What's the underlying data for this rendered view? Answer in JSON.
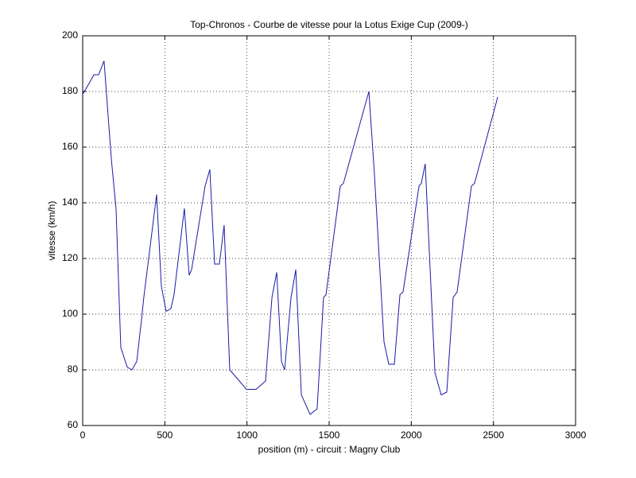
{
  "chart_data": {
    "type": "line",
    "title": "Top-Chronos - Courbe de vitesse pour la Lotus Exige Cup (2009-)",
    "x_label": "position (m) - circuit : Magny Club",
    "y_label": "vitesse (km/h)",
    "x": [
      0,
      40,
      68,
      97,
      130,
      174,
      203,
      232,
      271,
      300,
      329,
      358,
      372,
      450,
      479,
      508,
      537,
      556,
      619,
      648,
      663,
      745,
      774,
      803,
      832,
      861,
      895,
      997,
      1055,
      1113,
      1152,
      1181,
      1210,
      1229,
      1268,
      1297,
      1331,
      1384,
      1427,
      1466,
      1481,
      1568,
      1587,
      1742,
      1776,
      1834,
      1863,
      1897,
      1931,
      1950,
      2047,
      2061,
      2085,
      2144,
      2182,
      2216,
      2255,
      2279,
      2366,
      2385,
      2526
    ],
    "values": [
      179,
      183,
      186,
      186,
      191,
      156,
      138,
      88,
      81,
      80,
      83,
      98,
      106,
      143,
      110,
      101,
      102,
      107,
      138,
      114,
      116,
      146,
      152,
      118,
      118,
      132,
      80,
      73,
      73,
      76,
      106,
      115,
      83,
      80,
      106,
      116,
      71,
      64,
      66,
      106,
      107,
      146,
      147,
      180,
      150,
      90,
      82,
      82,
      107,
      108,
      146,
      147,
      154,
      79,
      71,
      72,
      106,
      108,
      146,
      147,
      178
    ],
    "color": "#1a1aa8",
    "xlim": [
      0,
      3000
    ],
    "xticks": [
      0,
      500,
      1000,
      1500,
      2000,
      2500,
      3000
    ],
    "ylim": [
      60,
      200
    ],
    "yticks": [
      60,
      80,
      100,
      120,
      140,
      160,
      180,
      200
    ],
    "grid": true
  }
}
